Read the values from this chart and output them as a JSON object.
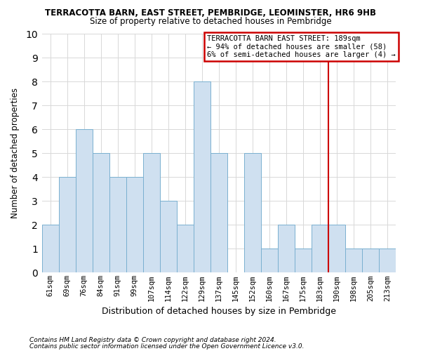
{
  "title": "TERRACOTTA BARN, EAST STREET, PEMBRIDGE, LEOMINSTER, HR6 9HB",
  "subtitle": "Size of property relative to detached houses in Pembridge",
  "xlabel": "Distribution of detached houses by size in Pembridge",
  "ylabel": "Number of detached properties",
  "categories": [
    "61sqm",
    "69sqm",
    "76sqm",
    "84sqm",
    "91sqm",
    "99sqm",
    "107sqm",
    "114sqm",
    "122sqm",
    "129sqm",
    "137sqm",
    "145sqm",
    "152sqm",
    "160sqm",
    "167sqm",
    "175sqm",
    "183sqm",
    "190sqm",
    "198sqm",
    "205sqm",
    "213sqm"
  ],
  "values": [
    2,
    4,
    6,
    5,
    4,
    4,
    5,
    3,
    2,
    8,
    5,
    0,
    5,
    1,
    2,
    1,
    2,
    2,
    1,
    1,
    1
  ],
  "bar_color": "#cfe0f0",
  "bar_edge_color": "#7ab0d0",
  "grid_color": "#d8d8d8",
  "vline_color": "#cc0000",
  "annotation_title": "TERRACOTTA BARN EAST STREET: 189sqm",
  "annotation_line1": "← 94% of detached houses are smaller (58)",
  "annotation_line2": "6% of semi-detached houses are larger (4) →",
  "annotation_box_color": "#cc0000",
  "ylim": [
    0,
    10
  ],
  "yticks": [
    0,
    1,
    2,
    3,
    4,
    5,
    6,
    7,
    8,
    9,
    10
  ],
  "footer1": "Contains HM Land Registry data © Crown copyright and database right 2024.",
  "footer2": "Contains public sector information licensed under the Open Government Licence v3.0.",
  "background_color": "#ffffff"
}
